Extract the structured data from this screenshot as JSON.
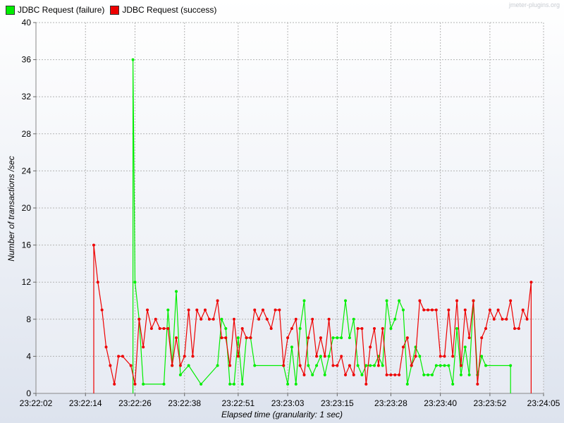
{
  "watermark": "jmeter-plugins.org",
  "chart_data": {
    "type": "line",
    "title": "",
    "xlabel": "Elapsed time (granularity: 1 sec)",
    "ylabel": "Number of transactions /sec",
    "ylim": [
      0,
      40
    ],
    "yticks": [
      0,
      4,
      8,
      12,
      16,
      20,
      24,
      28,
      32,
      36,
      40
    ],
    "xlim": [
      0,
      123
    ],
    "xticks": [
      {
        "t": 0,
        "label": "23:22:02"
      },
      {
        "t": 12,
        "label": "23:22:14"
      },
      {
        "t": 24,
        "label": "23:22:26"
      },
      {
        "t": 36,
        "label": "23:22:38"
      },
      {
        "t": 49,
        "label": "23:22:51"
      },
      {
        "t": 61,
        "label": "23:23:03"
      },
      {
        "t": 73,
        "label": "23:23:15"
      },
      {
        "t": 86,
        "label": "23:23:28"
      },
      {
        "t": 98,
        "label": "23:23:40"
      },
      {
        "t": 110,
        "label": "23:23:52"
      },
      {
        "t": 123,
        "label": "23:24:05"
      }
    ],
    "grid": true,
    "legend_position": "top-left",
    "series": [
      {
        "name": "JDBC Request (failure)",
        "color": "#00ee00",
        "x": [
          23.5,
          23.5,
          24,
          25,
          26,
          31,
          32,
          33,
          34,
          35,
          37,
          40,
          44,
          45,
          46,
          47,
          48,
          49,
          50,
          51,
          52,
          53,
          60,
          61,
          62,
          63,
          64,
          65,
          66,
          67,
          68,
          69,
          70,
          71,
          72,
          73,
          74,
          75,
          76,
          77,
          78,
          79,
          80,
          81,
          82,
          83,
          84,
          85,
          86,
          87,
          88,
          89,
          90,
          91,
          92,
          93,
          94,
          95,
          96,
          97,
          98,
          99,
          100,
          101,
          102,
          103,
          104,
          105,
          106,
          107,
          108,
          109,
          115,
          115
        ],
        "values": [
          0,
          36,
          12,
          8,
          1,
          1,
          9,
          3,
          11,
          2,
          3,
          1,
          3,
          8,
          7,
          1,
          1,
          6,
          1,
          6,
          6,
          3,
          3,
          1,
          5,
          1,
          7,
          10,
          3,
          2,
          3,
          4,
          2,
          4,
          6,
          6,
          6,
          10,
          6,
          8,
          3,
          2,
          3,
          3,
          3,
          4,
          3,
          10,
          7,
          8,
          10,
          9,
          1,
          3,
          5,
          4,
          2,
          2,
          2,
          3,
          3,
          3,
          3,
          1,
          7,
          2,
          5,
          2,
          10,
          2,
          4,
          3,
          3,
          0
        ]
      },
      {
        "name": "JDBC Request (success)",
        "color": "#ee0000",
        "x": [
          14,
          14,
          15,
          16,
          17,
          18,
          19,
          20,
          21,
          23,
          24,
          25,
          26,
          27,
          28,
          29,
          30,
          31,
          32,
          33,
          34,
          35,
          36,
          37,
          38,
          39,
          40,
          41,
          42,
          43,
          44,
          45,
          46,
          47,
          48,
          49,
          50,
          51,
          52,
          53,
          54,
          55,
          56,
          57,
          58,
          59,
          60,
          61,
          62,
          63,
          64,
          65,
          66,
          67,
          68,
          69,
          70,
          71,
          72,
          73,
          74,
          75,
          76,
          77,
          78,
          79,
          80,
          81,
          82,
          83,
          84,
          85,
          86,
          87,
          88,
          89,
          90,
          91,
          92,
          93,
          94,
          95,
          96,
          97,
          98,
          99,
          100,
          101,
          102,
          103,
          104,
          105,
          106,
          107,
          108,
          109,
          110,
          111,
          112,
          113,
          114,
          115,
          116,
          117,
          118,
          119,
          120,
          120
        ],
        "values": [
          0,
          16,
          12,
          9,
          5,
          3,
          1,
          4,
          4,
          3,
          1,
          8,
          5,
          9,
          7,
          8,
          7,
          7,
          7,
          3,
          6,
          3,
          4,
          9,
          4,
          9,
          8,
          9,
          8,
          8,
          10,
          6,
          6,
          3,
          8,
          4,
          7,
          6,
          6,
          9,
          8,
          9,
          8,
          7,
          9,
          9,
          3,
          6,
          7,
          8,
          3,
          2,
          6,
          8,
          4,
          6,
          4,
          8,
          3,
          3,
          4,
          2,
          3,
          2,
          7,
          7,
          1,
          5,
          7,
          3,
          7,
          2,
          2,
          2,
          2,
          5,
          6,
          3,
          4,
          10,
          9,
          9,
          9,
          9,
          4,
          4,
          9,
          4,
          10,
          3,
          9,
          6,
          10,
          1,
          6,
          7,
          9,
          8,
          9,
          8,
          8,
          10,
          7,
          7,
          9,
          8,
          12,
          0
        ]
      }
    ]
  }
}
